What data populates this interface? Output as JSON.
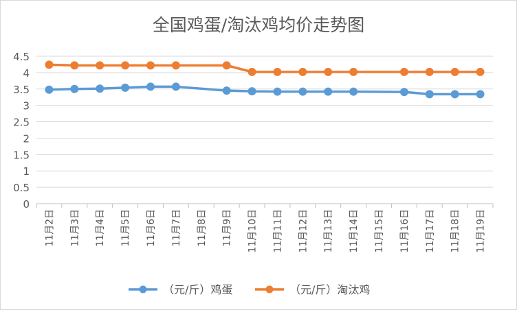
{
  "chart_data": {
    "type": "line",
    "title": "全国鸡蛋/淘汰鸡均价走势图",
    "xlabel": "",
    "ylabel": "",
    "ylim": [
      0,
      4.5
    ],
    "yticks": [
      "0",
      "0.5",
      "1",
      "1.5",
      "2",
      "2.5",
      "3",
      "3.5",
      "4",
      "4.5"
    ],
    "grid": true,
    "legend_position": "bottom",
    "categories": [
      "11月2日",
      "11月3日",
      "11月4日",
      "11月5日",
      "11月6日",
      "11月7日",
      "11月8日",
      "11月9日",
      "11月10日",
      "11月11日",
      "11月12日",
      "11月13日",
      "11月14日",
      "11月15日",
      "11月16日",
      "11月17日",
      "11月18日",
      "11月19日"
    ],
    "series": [
      {
        "name": "（元/斤）鸡蛋",
        "color": "#5B9BD5",
        "values": [
          3.48,
          3.5,
          3.51,
          3.54,
          3.57,
          3.57,
          null,
          3.45,
          3.43,
          3.42,
          3.42,
          3.42,
          3.42,
          null,
          3.41,
          3.34,
          3.34,
          3.34
        ]
      },
      {
        "name": "（元/斤）淘汰鸡",
        "color": "#ED7D31",
        "values": [
          4.24,
          4.22,
          4.22,
          4.22,
          4.22,
          4.22,
          null,
          4.22,
          4.02,
          4.02,
          4.02,
          4.02,
          4.02,
          null,
          4.02,
          4.02,
          4.02,
          4.02
        ]
      }
    ]
  }
}
